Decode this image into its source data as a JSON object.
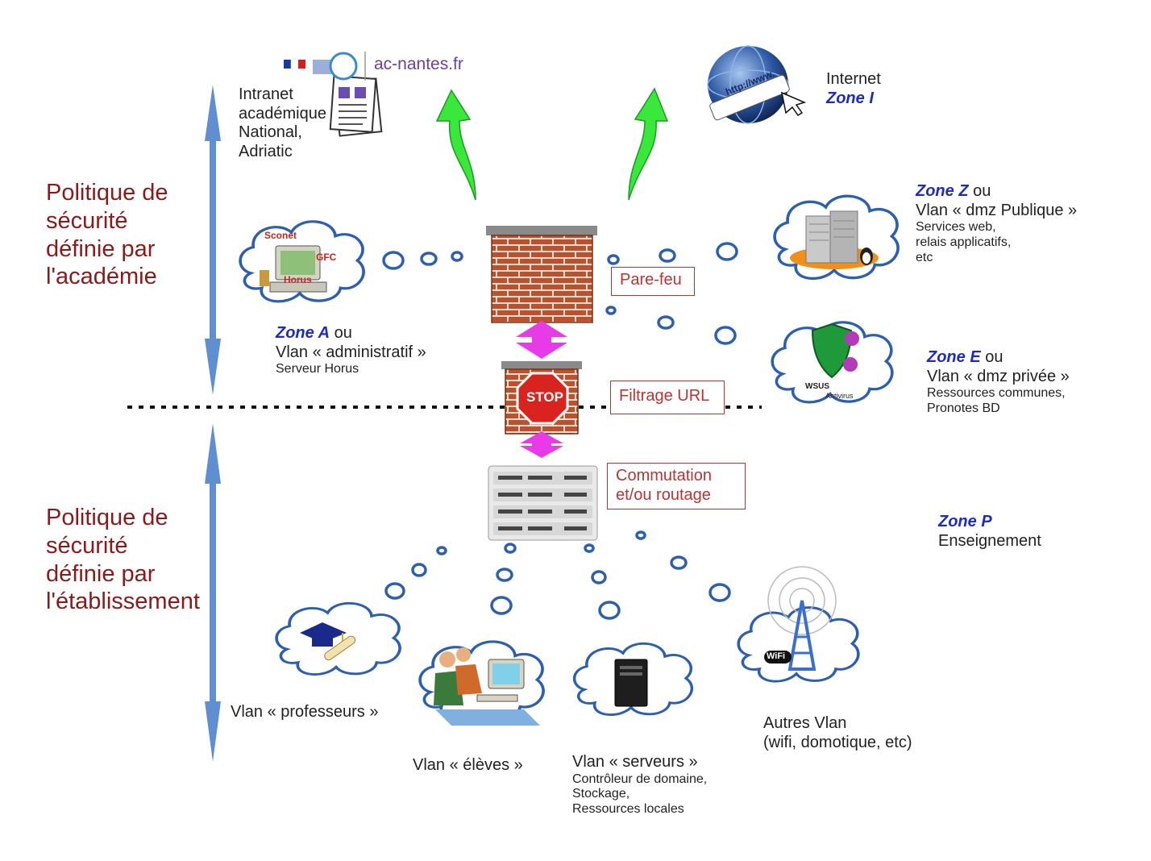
{
  "colors": {
    "policy_text": "#8b1a1a",
    "zone_text": "#1c2bc8",
    "label_border": "#b33333",
    "cloud_stroke": "#2d5fb0",
    "arrow_green": "#39e83b",
    "arrow_magenta": "#e83be8",
    "policy_arrow": "#5f8fd0"
  },
  "policy": {
    "academie": [
      "Politique de",
      "sécurité",
      "définie par",
      "l'académie"
    ],
    "etablissement": [
      "Politique de",
      "sécurité",
      "définie par",
      "l'établissement"
    ]
  },
  "intranet": {
    "lines": [
      "Intranet",
      "académique",
      "National,",
      "Adriatic"
    ],
    "logo_text": "ac-nantes.fr"
  },
  "internet": {
    "label": "Internet",
    "zone": "Zone I",
    "globe_text": "http://www."
  },
  "zone_z": {
    "zone": "Zone Z",
    "or": " ou",
    "vlan": "Vlan « dmz Publique »",
    "details": [
      "Services web,",
      "relais applicatifs,",
      "etc"
    ]
  },
  "zone_e": {
    "zone": "Zone E",
    "or": " ou",
    "vlan": "Vlan « dmz privée »",
    "details": [
      "Ressources communes,",
      "Pronotes BD"
    ],
    "icon_labels": [
      "WSUS",
      "Antivirus"
    ]
  },
  "zone_a": {
    "zone": "Zone A",
    "or": " ou",
    "vlan": "Vlan « administratif »",
    "details": [
      "Serveur Horus"
    ],
    "icon_labels": [
      "Sconet",
      "GFC",
      "Horus"
    ]
  },
  "zone_p": {
    "zone": "Zone P",
    "label": "Enseignement"
  },
  "boxes": {
    "parefeu": "Pare-feu",
    "filtrage": "Filtrage URL",
    "commutation": [
      "Commutation",
      "et/ou routage"
    ],
    "stop_sign": "STOP"
  },
  "vlans": {
    "professeurs": "Vlan « professeurs »",
    "eleves": "Vlan « élèves »",
    "serveurs": "Vlan « serveurs »",
    "serveurs_details": [
      "Contrôleur de domaine,",
      "Stockage,",
      "Ressources locales"
    ],
    "autres": [
      "Autres Vlan",
      "(wifi, domotique, etc)"
    ],
    "wifi_label": "WiFi"
  }
}
